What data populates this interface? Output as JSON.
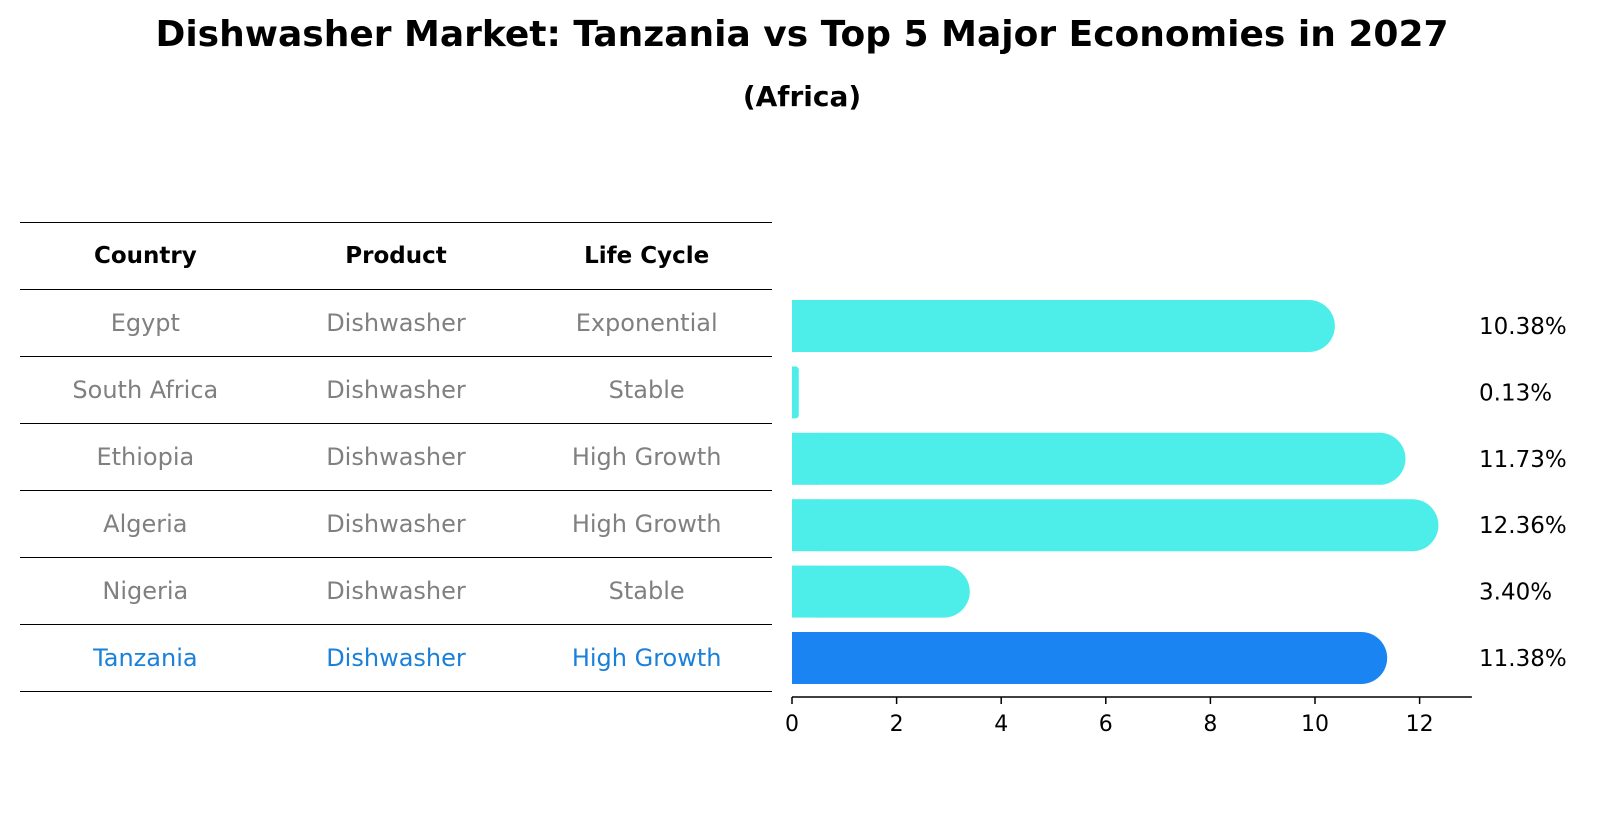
{
  "chart_data": {
    "type": "bar",
    "orientation": "horizontal",
    "title": "Dishwasher Market: Tanzania vs Top 5 Major Economies in 2027",
    "subtitle": "(Africa)",
    "table": {
      "headers": [
        "Country",
        "Product",
        "Life Cycle"
      ],
      "rows": [
        [
          "Egypt",
          "Dishwasher",
          "Exponential"
        ],
        [
          "South Africa",
          "Dishwasher",
          "Stable"
        ],
        [
          "Ethiopia",
          "Dishwasher",
          "High Growth"
        ],
        [
          "Algeria",
          "Dishwasher",
          "High Growth"
        ],
        [
          "Nigeria",
          "Dishwasher",
          "Stable"
        ],
        [
          "Tanzania",
          "Dishwasher",
          "High Growth"
        ]
      ],
      "highlight_row": 5
    },
    "categories": [
      "Egypt",
      "South Africa",
      "Ethiopia",
      "Algeria",
      "Nigeria",
      "Tanzania"
    ],
    "values": [
      10.38,
      0.13,
      11.73,
      12.36,
      3.4,
      11.38
    ],
    "value_labels": [
      "10.38%",
      "0.13%",
      "11.73%",
      "12.36%",
      "3.40%",
      "11.38%"
    ],
    "xlim": [
      0,
      13
    ],
    "xticks": [
      0,
      2,
      4,
      6,
      8,
      10,
      12
    ],
    "xtick_labels": [
      "0",
      "2",
      "4",
      "6",
      "8",
      "10",
      "12"
    ],
    "colors": {
      "bar": "#4deee9",
      "highlight": "#1a85f2",
      "highlight_text": "#1a80d9",
      "muted_text": "#808080"
    }
  }
}
